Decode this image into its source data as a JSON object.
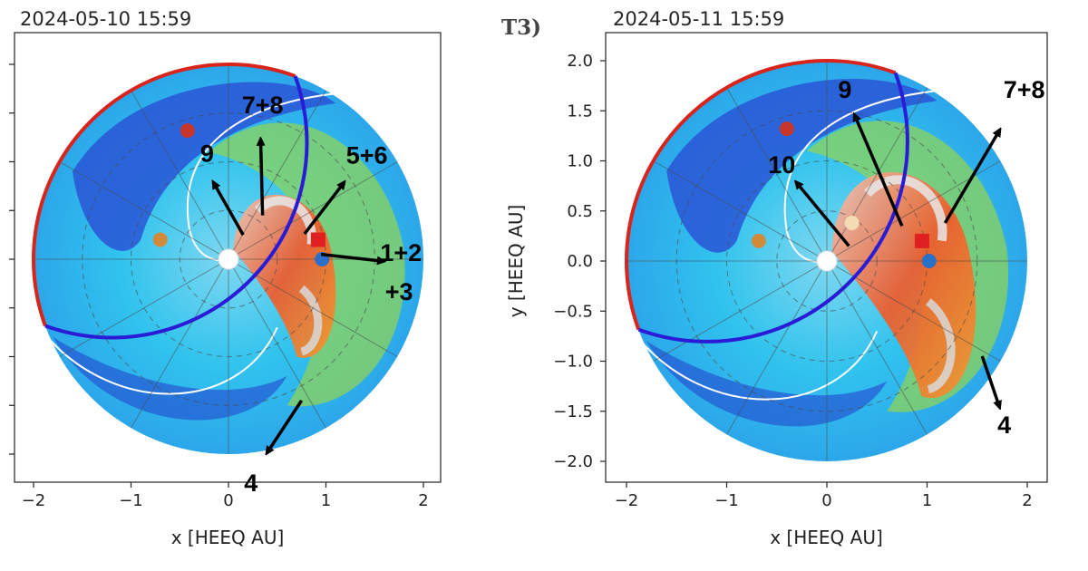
{
  "panel_label": "T3)",
  "chart_data": [
    {
      "type": "heatmap",
      "timestamp": "2024-05-10 15:59",
      "xlabel": "x [HEEQ AU]",
      "ylabel": "",
      "xlim": [
        -2.2,
        2.2
      ],
      "ylim": [
        -2.2,
        2.2
      ],
      "x_ticks": [
        "−2",
        "−1",
        "0",
        "1",
        "2"
      ],
      "y_ticks": [],
      "grid": "polar",
      "colors": {
        "field_low": "#1e5bd8",
        "field_mid": "#31c3ee",
        "field_high": "#e83a1c",
        "disk_edge_left": "#d8241a",
        "disk_edge_right": "#2a1bd6"
      },
      "bodies": [
        {
          "name": "sun",
          "x": 0.0,
          "y": 0.0,
          "color": "#ffffff"
        },
        {
          "name": "planet-red",
          "x": -0.42,
          "y": 1.32,
          "color": "#c8352a"
        },
        {
          "name": "planet-orange",
          "x": -0.7,
          "y": 0.2,
          "color": "#d08a3a"
        },
        {
          "name": "planet-blue",
          "x": 0.96,
          "y": 0.0,
          "color": "#2a6fc8"
        },
        {
          "name": "spacecraft-square",
          "x": 0.92,
          "y": 0.2,
          "color": "#e02020"
        }
      ],
      "arrows": [
        {
          "label": "7+8",
          "from": [
            0.35,
            0.45
          ],
          "to": [
            0.33,
            1.22
          ],
          "label_at": [
            0.35,
            1.5
          ]
        },
        {
          "label": "9",
          "from": [
            0.15,
            0.25
          ],
          "to": [
            -0.15,
            0.78
          ],
          "label_at": [
            -0.22,
            1.0
          ]
        },
        {
          "label": "5+6",
          "from": [
            0.78,
            0.26
          ],
          "to": [
            1.18,
            0.78
          ],
          "label_at": [
            1.42,
            0.98
          ]
        },
        {
          "label": "1+2",
          "from": [
            0.95,
            0.05
          ],
          "to": [
            1.58,
            -0.02
          ],
          "label_at": [
            1.77,
            -0.02
          ]
        },
        {
          "label": "+3",
          "from": null,
          "to": null,
          "label_at": [
            1.75,
            -0.42
          ]
        },
        {
          "label": "4",
          "from": [
            0.75,
            -1.45
          ],
          "to": [
            0.4,
            -1.98
          ],
          "label_at": [
            0.23,
            -2.38
          ]
        }
      ]
    },
    {
      "type": "heatmap",
      "timestamp": "2024-05-11 15:59",
      "xlabel": "x [HEEQ AU]",
      "ylabel": "y [HEEQ AU]",
      "xlim": [
        -2.2,
        2.2
      ],
      "ylim": [
        -2.2,
        2.2
      ],
      "x_ticks": [
        "−2",
        "−1",
        "0",
        "1",
        "2"
      ],
      "y_ticks": [
        "2.0",
        "1.5",
        "1.0",
        "0.5",
        "0.0",
        "−0.5",
        "−1.0",
        "−1.5",
        "−2.0"
      ],
      "grid": "polar",
      "colors": {
        "field_low": "#1e5bd8",
        "field_mid": "#31c3ee",
        "field_high": "#e83a1c",
        "disk_edge_left": "#d8241a",
        "disk_edge_right": "#2a1bd6"
      },
      "bodies": [
        {
          "name": "sun",
          "x": 0.0,
          "y": 0.0,
          "color": "#ffffff"
        },
        {
          "name": "planet-red",
          "x": -0.4,
          "y": 1.32,
          "color": "#c8352a"
        },
        {
          "name": "planet-orange",
          "x": -0.68,
          "y": 0.2,
          "color": "#d08a3a"
        },
        {
          "name": "planet-cream",
          "x": 0.25,
          "y": 0.38,
          "color": "#f3dcb4"
        },
        {
          "name": "planet-blue",
          "x": 1.02,
          "y": 0.0,
          "color": "#2a6fc8"
        },
        {
          "name": "spacecraft-square",
          "x": 0.95,
          "y": 0.2,
          "color": "#e02020"
        }
      ],
      "arrows": [
        {
          "label": "9",
          "from": [
            0.75,
            0.35
          ],
          "to": [
            0.28,
            1.45
          ],
          "label_at": [
            0.18,
            1.63
          ]
        },
        {
          "label": "10",
          "from": [
            0.22,
            0.15
          ],
          "to": [
            -0.3,
            0.78
          ],
          "label_at": [
            -0.45,
            0.88
          ]
        },
        {
          "label": "7+8",
          "from": [
            1.18,
            0.38
          ],
          "to": [
            1.72,
            1.3
          ],
          "label_at": [
            1.97,
            1.63
          ]
        },
        {
          "label": "4",
          "from": [
            1.55,
            -0.95
          ],
          "to": [
            1.72,
            -1.45
          ],
          "label_at": [
            1.77,
            -1.72
          ]
        }
      ]
    }
  ]
}
